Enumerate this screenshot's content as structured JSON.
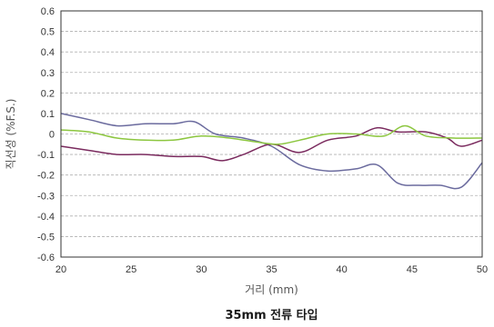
{
  "chart_data": {
    "type": "line",
    "title": "35mm 전류 타입",
    "xlabel": "거리 (mm)",
    "ylabel": "직선성 (%F.S.)",
    "xlim": [
      20,
      50
    ],
    "ylim": [
      -0.6,
      0.6
    ],
    "x_ticks": [
      "20",
      "25",
      "30",
      "35",
      "40",
      "45",
      "50"
    ],
    "y_ticks": [
      "0.6",
      "0.5",
      "0.4",
      "0.3",
      "0.2",
      "0.1",
      "0",
      "-0.1",
      "-0.2",
      "-0.3",
      "-0.4",
      "-0.5",
      "-0.6"
    ],
    "grid": true,
    "series": [
      {
        "color": "#6b6b9e",
        "points": [
          [
            20,
            0.1
          ],
          [
            22,
            0.07
          ],
          [
            24,
            0.04
          ],
          [
            26,
            0.05
          ],
          [
            28,
            0.05
          ],
          [
            29.5,
            0.06
          ],
          [
            31,
            0.0
          ],
          [
            33,
            -0.02
          ],
          [
            35,
            -0.06
          ],
          [
            37,
            -0.15
          ],
          [
            39,
            -0.18
          ],
          [
            41,
            -0.17
          ],
          [
            42.5,
            -0.15
          ],
          [
            44,
            -0.24
          ],
          [
            45.5,
            -0.25
          ],
          [
            47,
            -0.25
          ],
          [
            48.5,
            -0.26
          ],
          [
            50,
            -0.14
          ]
        ]
      },
      {
        "color": "#7a2a5e",
        "points": [
          [
            20,
            -0.06
          ],
          [
            22,
            -0.08
          ],
          [
            24,
            -0.1
          ],
          [
            26,
            -0.1
          ],
          [
            28,
            -0.11
          ],
          [
            30,
            -0.11
          ],
          [
            31.5,
            -0.13
          ],
          [
            33,
            -0.1
          ],
          [
            35,
            -0.05
          ],
          [
            37,
            -0.09
          ],
          [
            39,
            -0.03
          ],
          [
            41,
            -0.01
          ],
          [
            42.5,
            0.03
          ],
          [
            44,
            0.01
          ],
          [
            46,
            0.01
          ],
          [
            47.5,
            -0.02
          ],
          [
            48.5,
            -0.06
          ],
          [
            50,
            -0.03
          ]
        ]
      },
      {
        "color": "#8cc63f",
        "points": [
          [
            20,
            0.02
          ],
          [
            22,
            0.01
          ],
          [
            24,
            -0.02
          ],
          [
            26,
            -0.03
          ],
          [
            28,
            -0.03
          ],
          [
            30,
            -0.01
          ],
          [
            32,
            -0.02
          ],
          [
            34,
            -0.04
          ],
          [
            35.5,
            -0.05
          ],
          [
            37,
            -0.03
          ],
          [
            39,
            0.0
          ],
          [
            41,
            0.0
          ],
          [
            43,
            -0.01
          ],
          [
            44.5,
            0.04
          ],
          [
            46,
            -0.01
          ],
          [
            48,
            -0.02
          ],
          [
            50,
            -0.02
          ]
        ]
      }
    ]
  }
}
